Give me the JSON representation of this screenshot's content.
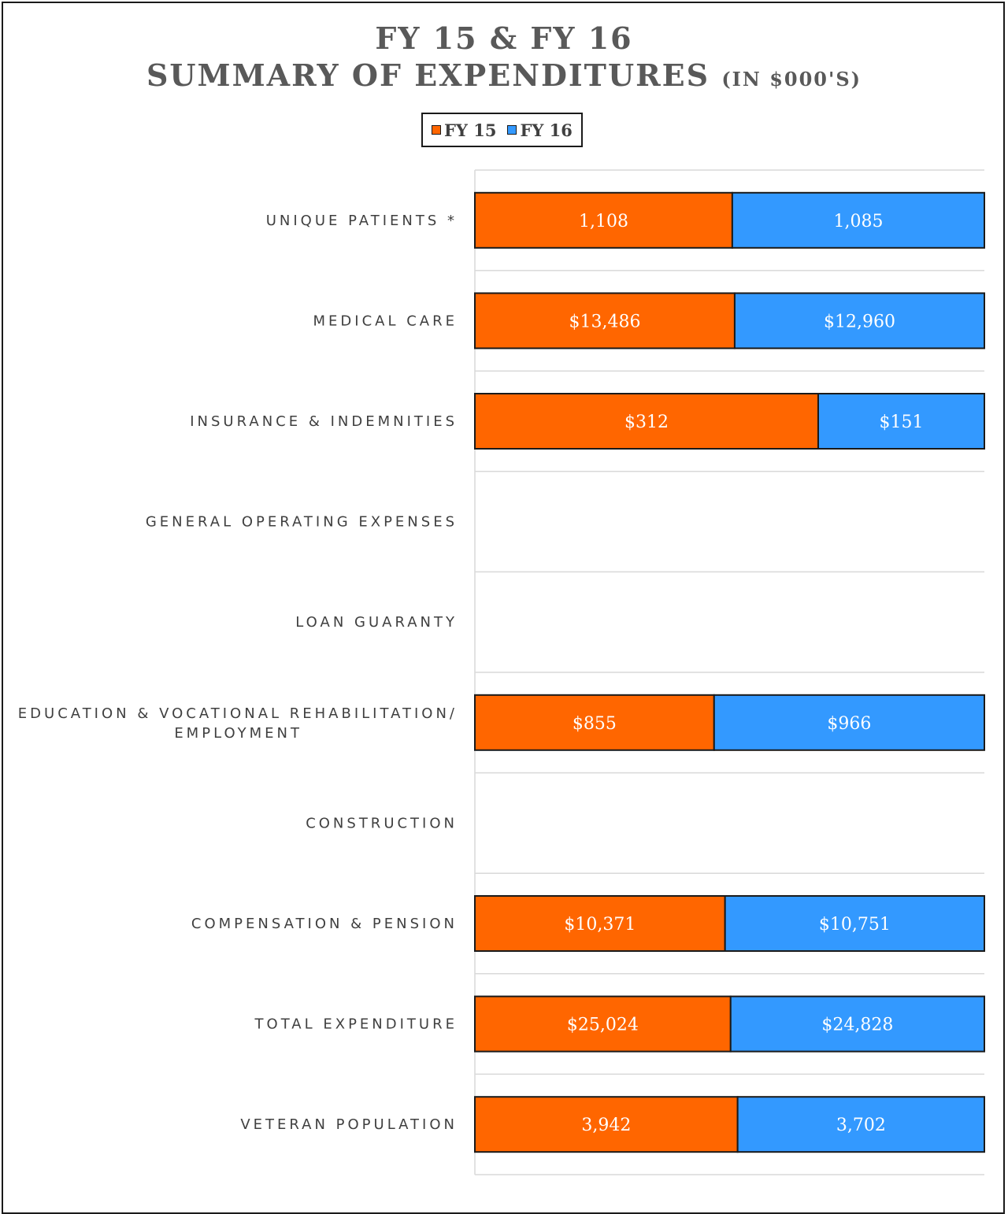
{
  "colors": {
    "fy15": "#ff6600",
    "fy16": "#3399ff",
    "gridline": "#d9d9d9",
    "text": "#404040"
  },
  "chart_data": {
    "type": "bar",
    "orientation": "horizontal",
    "stacked": true,
    "normalized": true,
    "title_line1": "FY 15 & FY 16",
    "title_line2": "SUMMARY OF EXPENDITURES",
    "title_unit": "(IN $000'S)",
    "legend": {
      "position": "top"
    },
    "grid": true,
    "categories": [
      "UNIQUE PATIENTS *",
      "MEDICAL CARE",
      "INSURANCE & INDEMNITIES",
      "GENERAL OPERATING EXPENSES",
      "LOAN GUARANTY",
      "EDUCATION & VOCATIONAL REHABILITATION/ EMPLOYMENT",
      "CONSTRUCTION",
      "COMPENSATION & PENSION",
      "TOTAL EXPENDITURE",
      "VETERAN POPULATION"
    ],
    "series": [
      {
        "name": "FY 15",
        "values": [
          1108,
          13486,
          312,
          null,
          null,
          855,
          null,
          10371,
          25024,
          3942
        ],
        "labels": [
          "1,108",
          "$13,486",
          "$312",
          "",
          "",
          "$855",
          "",
          "$10,371",
          "$25,024",
          "3,942"
        ]
      },
      {
        "name": "FY 16",
        "values": [
          1085,
          12960,
          151,
          null,
          null,
          966,
          null,
          10751,
          24828,
          3702
        ],
        "labels": [
          "1,085",
          "$12,960",
          "$151",
          "",
          "",
          "$966",
          "",
          "$10,751",
          "$24,828",
          "3,702"
        ]
      }
    ]
  }
}
